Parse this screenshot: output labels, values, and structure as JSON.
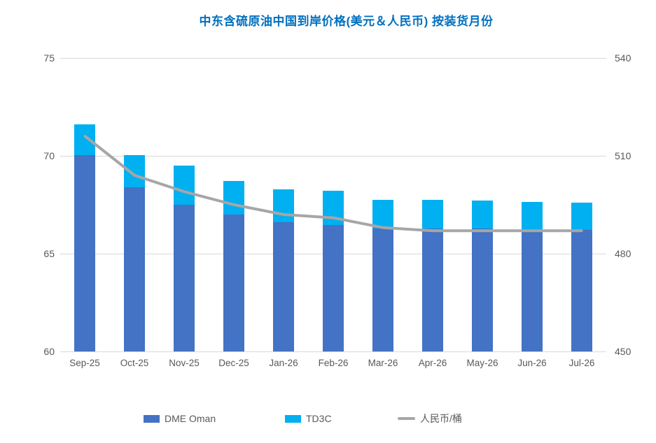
{
  "title": {
    "text": "中东含硫原油中国到岸价格(美元＆人民币) 按装货月份",
    "color": "#0070c0"
  },
  "chart_data": {
    "type": "bar",
    "subtype": "stacked-column-with-line",
    "title": "中东含硫原油中国到岸价格(美元＆人民币) 按装货月份",
    "categories": [
      "Sep-25",
      "Oct-25",
      "Nov-25",
      "Dec-25",
      "Jan-26",
      "Feb-26",
      "Mar-26",
      "Apr-26",
      "May-26",
      "Jun-26",
      "Jul-26"
    ],
    "series": [
      {
        "name": "DME Oman",
        "type": "bar",
        "stack": "usd",
        "axis": "left",
        "color": "#4472c4",
        "values": [
          70.05,
          68.4,
          67.5,
          67.0,
          66.6,
          66.45,
          66.3,
          66.3,
          66.3,
          66.25,
          66.2
        ]
      },
      {
        "name": "TD3C",
        "type": "bar",
        "stack": "usd",
        "axis": "left",
        "color": "#00b0f0",
        "values": [
          1.55,
          1.65,
          2.0,
          1.7,
          1.7,
          1.75,
          1.45,
          1.45,
          1.4,
          1.4,
          1.4
        ]
      },
      {
        "name": "人民币/桶",
        "type": "line",
        "axis": "right",
        "color": "#a6a6a6",
        "values": [
          516,
          504,
          499,
          495,
          492,
          491,
          488,
          487,
          487,
          487,
          487
        ]
      }
    ],
    "left_axis": {
      "min": 60,
      "max": 75,
      "ticks": [
        75,
        70,
        65,
        60
      ],
      "tick_labels": [
        "75",
        "70",
        "65",
        "60"
      ]
    },
    "right_axis": {
      "min": 450,
      "max": 540,
      "ticks": [
        540,
        510,
        480,
        450
      ],
      "tick_labels": [
        "540",
        "510",
        "480",
        "450"
      ]
    },
    "grid": true,
    "gridline_color": "#d9d9d9",
    "axis_text_color": "#595959",
    "legend_position": "bottom"
  },
  "legend": {
    "items": [
      {
        "label": "DME Oman",
        "swatch": "rect",
        "color": "#4472c4"
      },
      {
        "label": "TD3C",
        "swatch": "rect",
        "color": "#00b0f0"
      },
      {
        "label": "人民币/桶",
        "swatch": "line",
        "color": "#a6a6a6"
      }
    ]
  }
}
